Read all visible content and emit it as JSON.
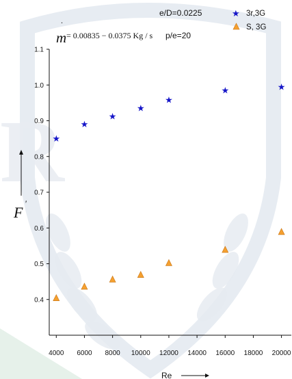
{
  "chart_data": {
    "type": "scatter",
    "xlabel": "Re",
    "ylabel": "F",
    "ylabel_superscript": "'",
    "xlim": [
      3500,
      20700
    ],
    "ylim": [
      0.3,
      1.1
    ],
    "x_ticks": [
      4000,
      6000,
      8000,
      10000,
      12000,
      14000,
      16000,
      18000,
      20000
    ],
    "x_tick_labels": [
      "4000",
      "6000",
      "8000",
      "10000",
      "12000",
      "14000",
      "16000",
      "18000",
      "20000"
    ],
    "y_ticks": [
      0.4,
      0.5,
      0.6,
      0.7,
      0.8,
      0.9,
      1.0,
      1.1
    ],
    "y_tick_labels": [
      "0.4",
      "0.5",
      "0.6",
      "0.7",
      "0.8",
      "0.9",
      "1.0",
      "1.1"
    ],
    "annotations": {
      "ed": "e/D=0.0225",
      "pe": "p/e=20",
      "formula_m": "m",
      "formula_rest": "= 0.00835 − 0.0375 Kg / s"
    },
    "series": [
      {
        "name": "3r,3G",
        "marker": "star",
        "color": "#1515c8",
        "x": [
          4000,
          6000,
          8000,
          10000,
          12000,
          16000,
          20000
        ],
        "y": [
          0.85,
          0.89,
          0.912,
          0.935,
          0.958,
          0.985,
          0.995
        ]
      },
      {
        "name": "S, 3G",
        "marker": "triangle",
        "color": "#f5a030",
        "x": [
          4000,
          6000,
          8000,
          10000,
          12000,
          16000,
          20000
        ],
        "y": [
          0.405,
          0.437,
          0.457,
          0.47,
          0.503,
          0.54,
          0.59
        ]
      }
    ]
  }
}
